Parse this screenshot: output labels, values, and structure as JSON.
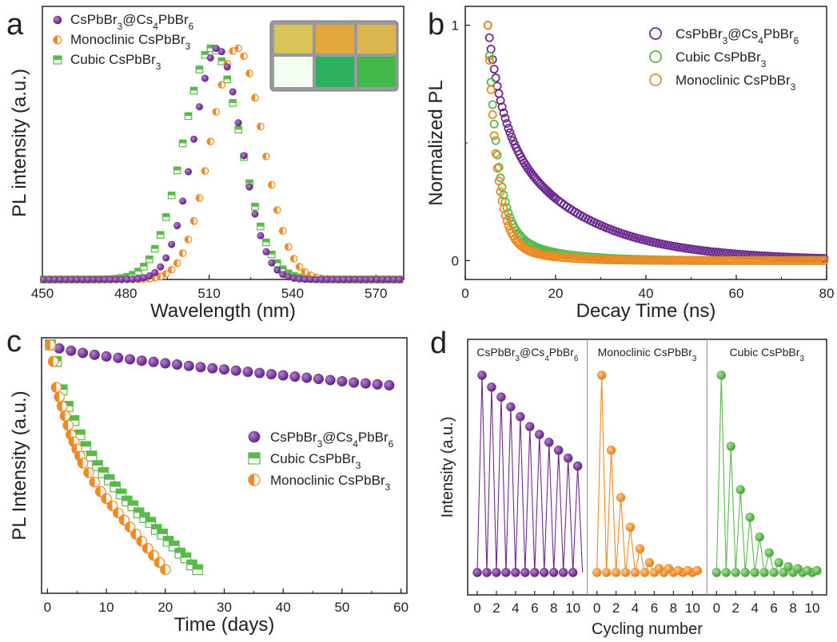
{
  "colors": {
    "purple": "#6d2a8f",
    "orange": "#f08a24",
    "green": "#5ab94a",
    "axis": "#222222"
  },
  "chart_data": [
    {
      "panel": "a",
      "type": "scatter",
      "xlabel": "Wavelength (nm)",
      "ylabel": "PL intensity (a.u.)",
      "xlim": [
        450,
        580
      ],
      "ylim": [
        0,
        1.18
      ],
      "xticks": [
        450,
        480,
        510,
        540,
        570
      ],
      "legend_position": "top-left",
      "inset": "photographs of sample vials",
      "series": [
        {
          "name": "CsPbBr3@Cs4PbBr6",
          "label_parts": [
            [
              "CsPbBr",
              ""
            ],
            [
              "3",
              "sub"
            ],
            [
              "@Cs",
              ""
            ],
            [
              "4",
              "sub"
            ],
            [
              "PbBr",
              ""
            ],
            [
              "6",
              "sub"
            ]
          ],
          "color": "#6d2a8f",
          "marker": "filled-circle",
          "peak": 513,
          "fwhm": 20,
          "amplitude": 1.0
        },
        {
          "name": "Monoclinic CsPbBr3",
          "label_parts": [
            [
              "Monoclinic CsPbBr",
              ""
            ],
            [
              "3",
              "sub"
            ]
          ],
          "color": "#f08a24",
          "marker": "half-circle",
          "peak": 520,
          "fwhm": 22,
          "amplitude": 1.0
        },
        {
          "name": "Cubic CsPbBr3",
          "label_parts": [
            [
              "Cubic CsPbBr",
              ""
            ],
            [
              "3",
              "sub"
            ]
          ],
          "color": "#5ab94a",
          "marker": "half-square",
          "peak": 511,
          "fwhm": 24,
          "amplitude": 1.0
        }
      ]
    },
    {
      "panel": "b",
      "type": "scatter",
      "xlabel": "Decay Time (ns)",
      "ylabel": "Normalized PL",
      "xlim": [
        0,
        80
      ],
      "ylim": [
        -0.08,
        1.08
      ],
      "xticks": [
        0,
        20,
        40,
        60,
        80
      ],
      "yticks": [
        0,
        1
      ],
      "legend_position": "top-right",
      "series": [
        {
          "name": "CsPbBr3@Cs4PbBr6",
          "label_parts": [
            [
              "CsPbBr",
              ""
            ],
            [
              "3",
              "sub"
            ],
            [
              "@Cs",
              ""
            ],
            [
              "4",
              "sub"
            ],
            [
              "PbBr",
              ""
            ],
            [
              "6",
              "sub"
            ]
          ],
          "color": "#6d2a8f",
          "marker": "open-circle",
          "t0": 5,
          "tau1": 3.2,
          "a1": 0.4,
          "tau2": 18,
          "a2": 0.6
        },
        {
          "name": "Cubic CsPbBr3",
          "label_parts": [
            [
              "Cubic CsPbBr",
              ""
            ],
            [
              "3",
              "sub"
            ]
          ],
          "color": "#5ab94a",
          "marker": "open-circle",
          "t0": 5,
          "tau1": 2.2,
          "a1": 0.85,
          "tau2": 10,
          "a2": 0.15
        },
        {
          "name": "Monoclinic CsPbBr3",
          "label_parts": [
            [
              "Monoclinic CsPbBr",
              ""
            ],
            [
              "3",
              "sub"
            ]
          ],
          "color": "#f08a24",
          "marker": "open-circle",
          "t0": 5,
          "tau1": 2.0,
          "a1": 0.9,
          "tau2": 8,
          "a2": 0.1
        }
      ]
    },
    {
      "panel": "c",
      "type": "scatter",
      "xlabel": "Time (days)",
      "ylabel": "PL Intensity (a.u.)",
      "xlim": [
        -1,
        61
      ],
      "ylim": [
        -0.05,
        1.03
      ],
      "xticks": [
        0,
        10,
        20,
        30,
        40,
        50,
        60
      ],
      "legend_position": "center-right",
      "series": [
        {
          "name": "CsPbBr3@Cs4PbBr6",
          "label_parts": [
            [
              "CsPbBr",
              ""
            ],
            [
              "3",
              "sub"
            ],
            [
              "@Cs",
              ""
            ],
            [
              "4",
              "sub"
            ],
            [
              "PbBr",
              ""
            ],
            [
              "6",
              "sub"
            ]
          ],
          "color": "#6d2a8f",
          "marker": "filled-circle",
          "x": [
            0.5,
            2,
            4,
            6,
            8,
            10,
            12,
            14,
            16,
            18,
            20,
            22,
            24,
            26,
            28,
            30,
            32,
            34,
            36,
            38,
            40,
            42,
            44,
            46,
            48,
            50,
            52,
            54,
            56,
            58
          ],
          "y": [
            1.0,
            0.985,
            0.975,
            0.966,
            0.958,
            0.951,
            0.945,
            0.939,
            0.933,
            0.928,
            0.922,
            0.917,
            0.911,
            0.906,
            0.901,
            0.896,
            0.891,
            0.886,
            0.881,
            0.876,
            0.871,
            0.866,
            0.861,
            0.856,
            0.851,
            0.846,
            0.841,
            0.837,
            0.833,
            0.829
          ]
        },
        {
          "name": "Cubic CsPbBr3",
          "label_parts": [
            [
              "Cubic CsPbBr",
              ""
            ],
            [
              "3",
              "sub"
            ]
          ],
          "color": "#5ab94a",
          "marker": "half-square",
          "x": [
            0.5,
            1.5,
            2.5,
            3.5,
            4.5,
            5.5,
            6.5,
            7.5,
            8.5,
            9.5,
            10.5,
            11.5,
            12.5,
            13.5,
            14.5,
            15.5,
            16.5,
            17.5,
            18.5,
            19.5,
            20.5,
            21.5,
            22.5,
            23.5,
            24.5,
            25.5
          ],
          "y": [
            1.0,
            0.93,
            0.81,
            0.74,
            0.68,
            0.62,
            0.57,
            0.53,
            0.49,
            0.46,
            0.43,
            0.4,
            0.37,
            0.34,
            0.32,
            0.29,
            0.27,
            0.25,
            0.22,
            0.2,
            0.17,
            0.15,
            0.12,
            0.1,
            0.07,
            0.05
          ]
        },
        {
          "name": "Monoclinic CsPbBr3",
          "label_parts": [
            [
              "Monoclinic CsPbBr",
              ""
            ],
            [
              "3",
              "sub"
            ]
          ],
          "color": "#f08a24",
          "marker": "half-circle",
          "x": [
            0.5,
            1.0,
            1.5,
            2.0,
            2.5,
            3.0,
            3.5,
            4.0,
            4.5,
            5.0,
            5.5,
            6.0,
            7,
            8,
            9,
            10,
            11,
            12,
            13,
            14,
            15,
            16,
            17,
            18,
            19,
            20
          ],
          "y": [
            1.0,
            0.93,
            0.82,
            0.78,
            0.74,
            0.7,
            0.66,
            0.62,
            0.59,
            0.56,
            0.53,
            0.5,
            0.46,
            0.42,
            0.38,
            0.35,
            0.32,
            0.29,
            0.26,
            0.23,
            0.2,
            0.17,
            0.14,
            0.11,
            0.08,
            0.05
          ]
        }
      ]
    },
    {
      "panel": "d",
      "type": "line",
      "xlabel": "Cycling number",
      "ylabel": "Intensity (a.u.)",
      "xticks": [
        0,
        2,
        4,
        6,
        8,
        10
      ],
      "segments": [
        {
          "label_parts": [
            [
              "CsPbBr",
              ""
            ],
            [
              "3",
              "sub"
            ],
            [
              "@Cs",
              ""
            ],
            [
              "4",
              "sub"
            ],
            [
              "PbBr",
              ""
            ],
            [
              "6",
              "sub"
            ]
          ],
          "color": "#6d2a8f",
          "peaks": [
            1.0,
            0.94,
            0.89,
            0.84,
            0.79,
            0.74,
            0.7,
            0.66,
            0.62,
            0.58,
            0.54
          ],
          "baseline": 0.0
        },
        {
          "label_parts": [
            [
              "Monoclinic CsPbBr",
              ""
            ],
            [
              "3",
              "sub"
            ]
          ],
          "color": "#f08a24",
          "peaks": [
            1.0,
            0.62,
            0.38,
            0.23,
            0.12,
            0.05,
            0.02,
            0.02,
            0.01,
            0.01,
            0.01
          ],
          "baseline": 0.0
        },
        {
          "label_parts": [
            [
              "Cubic CsPbBr",
              ""
            ],
            [
              "3",
              "sub"
            ]
          ],
          "color": "#5ab94a",
          "peaks": [
            1.0,
            0.64,
            0.42,
            0.28,
            0.18,
            0.1,
            0.05,
            0.03,
            0.02,
            0.01,
            0.01
          ],
          "baseline": 0.0
        }
      ]
    }
  ]
}
